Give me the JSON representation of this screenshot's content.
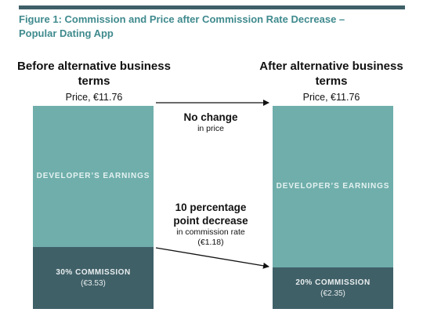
{
  "figure": {
    "title": "Figure 1: Commission and Price after Commission Rate Decrease – Popular Dating App"
  },
  "before": {
    "heading": "Before alternative business terms",
    "price": "Price, €11.76",
    "earnings_label": "DEVELOPER’S EARNINGS",
    "commission_label": "30% COMMISSION",
    "commission_value": "(€3.53)",
    "commission_rate": 30
  },
  "after": {
    "heading": "After alternative business terms",
    "price": "Price, €11.76",
    "earnings_label": "DEVELOPER’S EARNINGS",
    "commission_label": "20% COMMISSION",
    "commission_value": "(€2.35)",
    "commission_rate": 20
  },
  "price_change": {
    "headline": "No change",
    "sub": "in price"
  },
  "rate_change": {
    "headline": "10 percentage point decrease",
    "sub": "in commission rate",
    "value": "(€1.18)"
  },
  "colors": {
    "earnings": "#6faeab",
    "commission": "#406068",
    "title": "#3f8a8d",
    "rule": "#3f6068"
  }
}
